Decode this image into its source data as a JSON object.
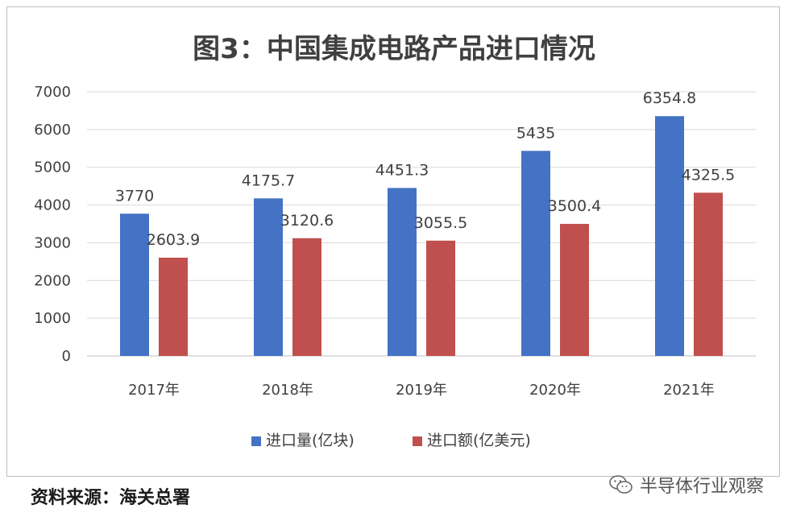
{
  "chart_data": {
    "type": "bar",
    "title": "图3：中国集成电路产品进口情况",
    "categories": [
      "2017年",
      "2018年",
      "2019年",
      "2020年",
      "2021年"
    ],
    "series": [
      {
        "name": "进口量(亿块)",
        "color": "#4472c4",
        "values": [
          3770,
          4175.7,
          4451.3,
          5435,
          6354.8
        ]
      },
      {
        "name": "进口额(亿美元)",
        "color": "#c0504d",
        "values": [
          2603.9,
          3120.6,
          3055.5,
          3500.4,
          4325.5
        ]
      }
    ],
    "ylim": [
      0,
      7000
    ],
    "yticks": [
      0,
      1000,
      2000,
      3000,
      4000,
      5000,
      6000,
      7000
    ],
    "grid": true,
    "legend_position": "bottom"
  },
  "footer": {
    "source": "资料来源：海关总署",
    "watermark": "半导体行业观察",
    "watermark_icon": "wechat-icon"
  }
}
